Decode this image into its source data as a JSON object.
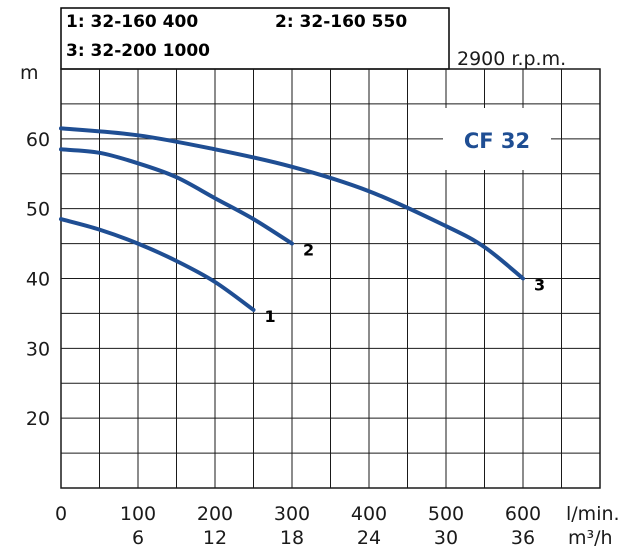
{
  "chart_data": {
    "type": "line",
    "legend": {
      "entries": [
        "1: 32-160 400",
        "2: 32-160 550",
        "3: 32-200 1000"
      ]
    },
    "speed_label": "2900 r.p.m.",
    "model_label": "CF 32",
    "ylabel": "m",
    "xlabel_flow_lmin": "l/min.",
    "xlabel_flow_m3h": "m³/h",
    "xlim": [
      0,
      700
    ],
    "ylim": [
      10,
      70
    ],
    "x_ticks": [
      "0",
      "100",
      "200",
      "300",
      "400",
      "500",
      "600"
    ],
    "x_ticks_m3h": [
      "6",
      "12",
      "18",
      "24",
      "30",
      "36"
    ],
    "y_ticks": [
      "20",
      "30",
      "40",
      "50",
      "60"
    ],
    "series": [
      {
        "name": "1",
        "x": [
          0,
          50,
          100,
          150,
          200,
          250
        ],
        "y": [
          48.5,
          47,
          45,
          42.5,
          39.5,
          35.5
        ]
      },
      {
        "name": "2",
        "x": [
          0,
          50,
          100,
          150,
          200,
          250,
          300
        ],
        "y": [
          58.5,
          58,
          56.5,
          54.5,
          51.5,
          48.5,
          45
        ]
      },
      {
        "name": "3",
        "x": [
          0,
          100,
          200,
          300,
          400,
          500,
          550,
          600
        ],
        "y": [
          61.5,
          60.5,
          58.5,
          56,
          52.5,
          47.5,
          44.5,
          40
        ]
      }
    ],
    "colors": {
      "curve": "#1f4e93",
      "grid": "#1a1a1a",
      "model": "#1f4e93"
    }
  }
}
